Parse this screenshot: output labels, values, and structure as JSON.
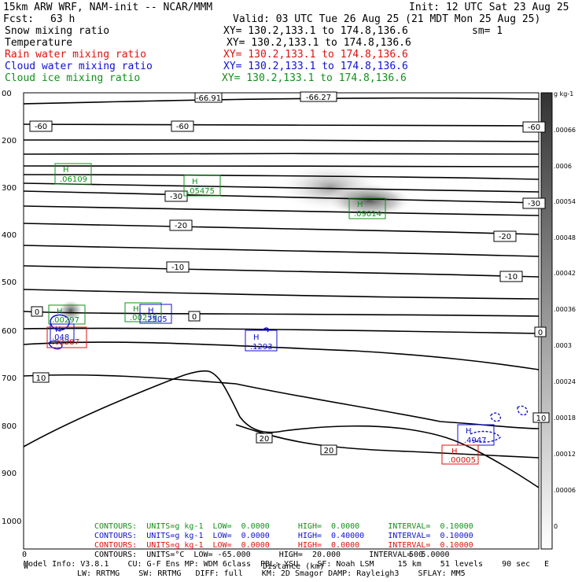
{
  "header": {
    "model": "15km ARW WRF, NAM-init -- NCAR/MMM",
    "init": "Init: 12 UTC Sat 23 Aug 25",
    "fcst_label": "Fcst:",
    "fcst_value": "63 h",
    "valid": "Valid: 03 UTC Tue 26 Aug 25 (21 MDT Mon 25 Aug 25)",
    "snow_label": "Snow mixing ratio",
    "snow_xy": "XY= 130.2,133.1 to 174.8,136.6",
    "snow_sm": "sm= 1",
    "temp_label": "Temperature",
    "temp_xy": "XY= 130.2,133.1 to 174.8,136.6",
    "rain_label": "Rain water mixing ratio",
    "rain_xy": "XY= 130.2,133.1 to 174.8,136.6",
    "cloudwater_label": "Cloud water mixing ratio",
    "cloudwater_xy": "XY= 130.2,133.1 to 174.8,136.6",
    "cloudice_label": "Cloud ice mixing ratio",
    "cloudice_xy": "XY= 130.2,133.1 to 174.8,136.6"
  },
  "colors": {
    "rain": "#e01010",
    "cloud_water": "#1010d0",
    "cloud_ice": "#10901a",
    "temperature": "#000000",
    "terrain": "#000000"
  },
  "footer": {
    "contours_green": "CONTOURS:  UNITS=g kg-1  LOW=  0.0000      HIGH=  0.0000      INTERVAL=  0.10000",
    "contours_blue": "CONTOURS:  UNITS=g kg-1  LOW=  0.0000      HIGH=  0.40000     INTERVAL=  0.10000",
    "contours_red": "CONTOURS:  UNITS=g kg-1  LOW=  0.0000      HIGH=  0.0000      INTERVAL=  0.10000",
    "contours_black": "CONTOURS:  UNITS=°C  LOW= -65.000      HIGH=  20.000      INTERVAL=  5.0000",
    "model_info_1": "Model Info: V3.8.1    CU: G-F Ens MP: WDM 6class  PBL: YSU    SF: Noah LSM     15 km    51 levels    90 sec",
    "model_info_2": "LW: RRTMG    SW: RRTMG   DIFF: full    KM: 2D Smagor DAMP: Rayleigh3    SFLAY: MM5",
    "xlabel": "Distance (km)",
    "x0": "0",
    "x500": "500",
    "w_label": "W",
    "e_label": "E"
  },
  "chart_data": {
    "type": "cross-section",
    "xlabel": "Distance (km)",
    "x_ticks": [
      "0",
      "500"
    ],
    "y_ticks": [
      "00",
      "200",
      "300",
      "400",
      "500",
      "600",
      "700",
      "800",
      "900",
      "1000"
    ],
    "y_scale": "log-pressure (hPa)",
    "colorbar_units": "g kg-1",
    "colorbar_ticks": [
      "0",
      "6e-05",
      "0.00012",
      "0.00018",
      "0.00024",
      "0.0003",
      "0.00036",
      "0.00042",
      "0.00048",
      "0.00054",
      "0.0006",
      "0.00066"
    ],
    "colorbar_labels": [
      ".00066",
      ".0006",
      ".00054",
      ".00048",
      ".00042",
      ".00036",
      ".0003",
      ".00024",
      ".00018",
      ".00012",
      ".00006",
      "0"
    ],
    "temperature_contour_labels": [
      "-66.91",
      "-66.27",
      "-60",
      "-60",
      "-60",
      "-30",
      "-30",
      "-20",
      "-20",
      "-10",
      "-10",
      "0",
      "0",
      "0",
      "10",
      "10",
      "20",
      "20"
    ],
    "highs": [
      {
        "series": "cloud_ice",
        "label": "H",
        "value": ".06109"
      },
      {
        "series": "cloud_ice",
        "label": "H",
        "value": ".05475"
      },
      {
        "series": "cloud_ice",
        "label": "H",
        "value": ".09014"
      },
      {
        "series": "cloud_ice",
        "label": "H",
        "value": ".00297"
      },
      {
        "series": "cloud_ice",
        "label": "H",
        "value": ".00239"
      },
      {
        "series": "cloud_water",
        "label": "H",
        "value": ".048"
      },
      {
        "series": "cloud_water",
        "label": "H",
        "value": ".1293"
      },
      {
        "series": "cloud_water",
        "label": "H",
        "value": ".4947"
      },
      {
        "series": "cloud_water",
        "label": "H",
        "value": ".2505"
      },
      {
        "series": "rain",
        "label": "H",
        "value": ".02287"
      },
      {
        "series": "rain",
        "label": "H",
        "value": ".00005"
      }
    ]
  }
}
